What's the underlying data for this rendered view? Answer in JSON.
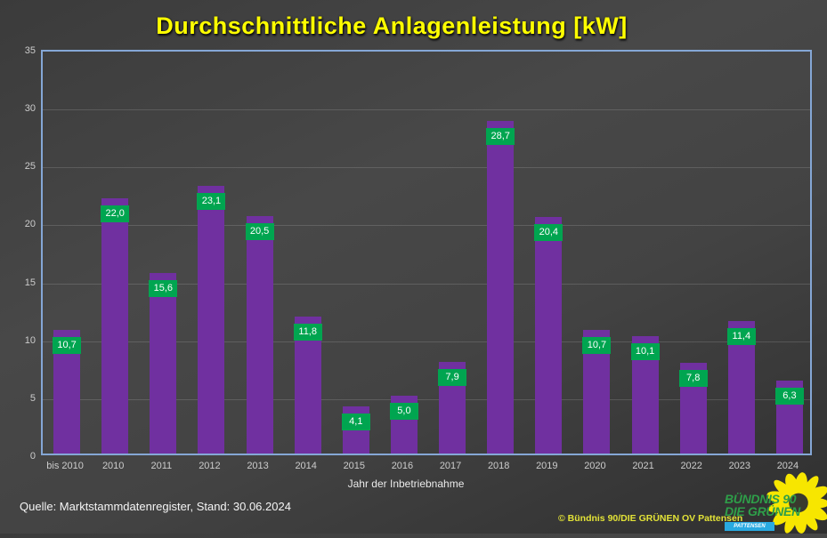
{
  "title": "Durchschnittliche Anlagenleistung [kW]",
  "chart_data": {
    "type": "bar",
    "title": "Durchschnittliche Anlagenleistung [kW]",
    "categories": [
      "bis 2010",
      "2010",
      "2011",
      "2012",
      "2013",
      "2014",
      "2015",
      "2016",
      "2017",
      "2018",
      "2019",
      "2020",
      "2021",
      "2022",
      "2023",
      "2024"
    ],
    "values": [
      10.7,
      22.0,
      15.6,
      23.1,
      20.5,
      11.8,
      4.1,
      5.0,
      7.9,
      28.7,
      20.4,
      10.7,
      10.1,
      7.8,
      11.4,
      6.3
    ],
    "xlabel": "Jahr der Inbetriebnahme",
    "ylabel": "",
    "ylim": [
      0,
      35
    ],
    "yticks": [
      0,
      5,
      10,
      15,
      20,
      25,
      30,
      35
    ],
    "grid": true,
    "legend": "none",
    "decimal_separator": ","
  },
  "colors": {
    "title": "#ffff00",
    "bar": "#7030a0",
    "value_label_bg": "#00a550",
    "value_label_text": "#ffffff",
    "plot_border": "#85a7d6",
    "copyright": "#e3e337",
    "logo_green": "#2e9e49",
    "logo_badge_bg": "#29aae1",
    "sunflower_yellow": "#f7e600"
  },
  "footer": {
    "source": "Quelle: Marktstammdatenregister, Stand: 30.06.2024",
    "copyright": "© Bündnis 90/DIE GRÜNEN OV Pattensen"
  },
  "logo": {
    "line1": "BÜNDNIS 90",
    "line2": "DIE GRÜNEN",
    "badge": "PATTENSEN"
  }
}
